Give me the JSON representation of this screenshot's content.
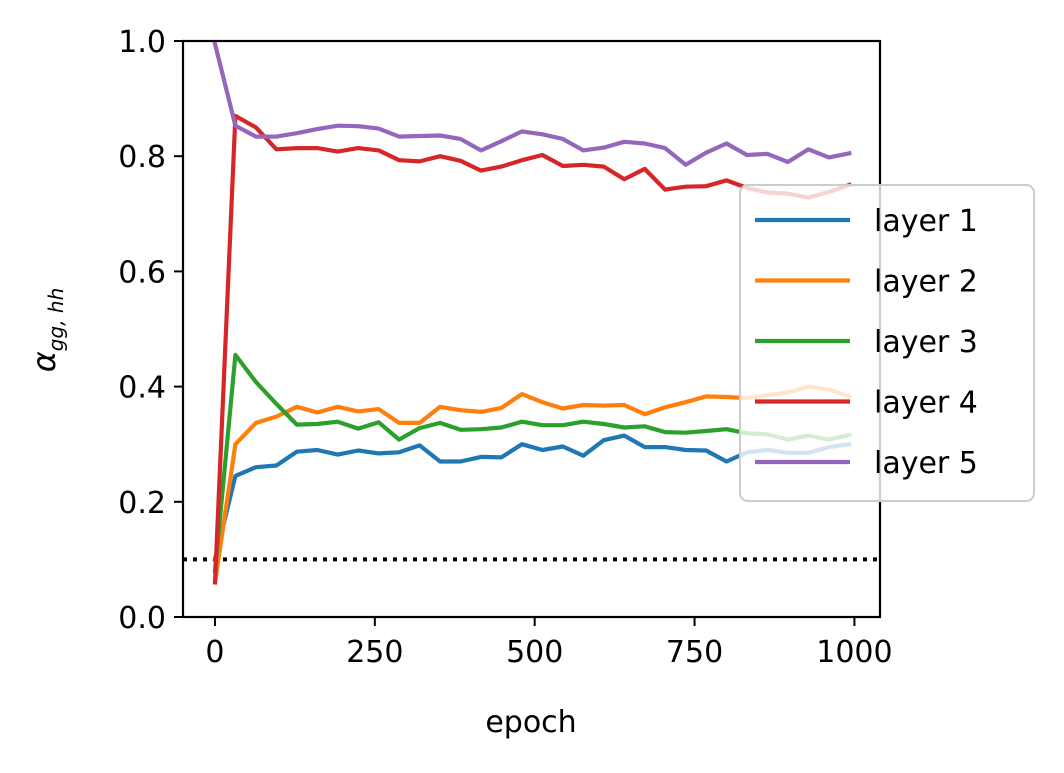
{
  "chart_data": {
    "type": "line",
    "title": "",
    "xlabel": "epoch",
    "ylabel_main": "α",
    "ylabel_sub": "gg, hh",
    "xlim": [
      -50,
      1040
    ],
    "ylim": [
      0.0,
      1.0
    ],
    "xticks": [
      0,
      250,
      500,
      750,
      1000
    ],
    "xtick_labels": [
      "0",
      "250",
      "500",
      "750",
      "1000"
    ],
    "yticks": [
      0.0,
      0.2,
      0.4,
      0.6,
      0.8,
      1.0
    ],
    "ytick_labels": [
      "0.0",
      "0.2",
      "0.4",
      "0.6",
      "0.8",
      "1.0"
    ],
    "grid": false,
    "legend_position": "right",
    "reference_line": {
      "y": 0.1,
      "style": "dotted",
      "color": "#000000"
    },
    "x": [
      0,
      32,
      64,
      96,
      128,
      160,
      192,
      224,
      256,
      288,
      320,
      352,
      384,
      416,
      448,
      480,
      512,
      544,
      576,
      608,
      640,
      672,
      704,
      736,
      768,
      800,
      832,
      864,
      896,
      928,
      960,
      992
    ],
    "series": [
      {
        "name": "layer 1",
        "color": "#1f77b4",
        "values": [
          0.1,
          0.245,
          0.26,
          0.263,
          0.287,
          0.29,
          0.282,
          0.289,
          0.284,
          0.286,
          0.298,
          0.27,
          0.27,
          0.278,
          0.277,
          0.3,
          0.29,
          0.296,
          0.28,
          0.307,
          0.315,
          0.295,
          0.295,
          0.29,
          0.289,
          0.27,
          0.286,
          0.29,
          0.285,
          0.285,
          0.295,
          0.3
        ]
      },
      {
        "name": "layer 2",
        "color": "#ff7f0e",
        "values": [
          0.06,
          0.3,
          0.337,
          0.348,
          0.365,
          0.355,
          0.365,
          0.357,
          0.361,
          0.337,
          0.337,
          0.365,
          0.359,
          0.356,
          0.363,
          0.387,
          0.373,
          0.362,
          0.368,
          0.367,
          0.368,
          0.352,
          0.364,
          0.373,
          0.383,
          0.382,
          0.38,
          0.385,
          0.39,
          0.4,
          0.395,
          0.383
        ]
      },
      {
        "name": "layer 3",
        "color": "#2ca02c",
        "values": [
          0.08,
          0.455,
          0.408,
          0.37,
          0.334,
          0.335,
          0.339,
          0.327,
          0.338,
          0.308,
          0.328,
          0.337,
          0.325,
          0.326,
          0.329,
          0.339,
          0.333,
          0.333,
          0.339,
          0.335,
          0.329,
          0.331,
          0.321,
          0.32,
          0.323,
          0.326,
          0.319,
          0.317,
          0.308,
          0.315,
          0.308,
          0.316
        ]
      },
      {
        "name": "layer 4",
        "color": "#d62728",
        "values": [
          0.06,
          0.87,
          0.85,
          0.812,
          0.814,
          0.814,
          0.808,
          0.814,
          0.81,
          0.793,
          0.791,
          0.8,
          0.792,
          0.775,
          0.782,
          0.793,
          0.802,
          0.783,
          0.785,
          0.782,
          0.76,
          0.778,
          0.742,
          0.747,
          0.748,
          0.758,
          0.745,
          0.737,
          0.735,
          0.728,
          0.738,
          0.75
        ]
      },
      {
        "name": "layer 5",
        "color": "#9467bd",
        "values": [
          0.995,
          0.853,
          0.834,
          0.834,
          0.84,
          0.847,
          0.853,
          0.852,
          0.848,
          0.834,
          0.835,
          0.836,
          0.83,
          0.81,
          0.826,
          0.843,
          0.838,
          0.83,
          0.81,
          0.815,
          0.825,
          0.822,
          0.814,
          0.785,
          0.806,
          0.822,
          0.802,
          0.804,
          0.79,
          0.812,
          0.798,
          0.805
        ]
      }
    ]
  }
}
